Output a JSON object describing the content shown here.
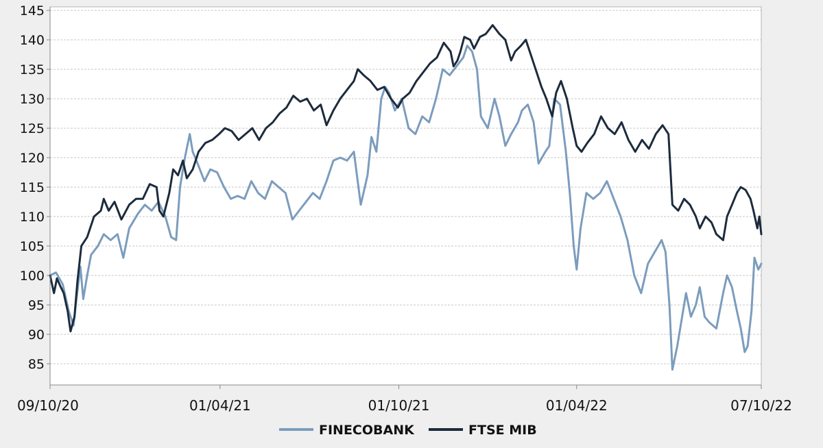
{
  "chart_data": {
    "type": "line",
    "title": "",
    "xlabel": "",
    "ylabel": "",
    "x_range": [
      "2020-10-09",
      "2022-10-07"
    ],
    "ylim": [
      81.4,
      145.6
    ],
    "y_ticks": [
      85,
      90,
      95,
      100,
      105,
      110,
      115,
      120,
      125,
      130,
      135,
      140,
      145
    ],
    "x_ticks": [
      {
        "date": "2020-10-09",
        "label": "09/10/20"
      },
      {
        "date": "2021-04-01",
        "label": "01/04/21"
      },
      {
        "date": "2021-10-01",
        "label": "01/10/21"
      },
      {
        "date": "2022-04-01",
        "label": "01/04/22"
      },
      {
        "date": "2022-10-07",
        "label": "07/10/22"
      }
    ],
    "grid": "horizontal-dashed",
    "legend_position": "bottom-center",
    "colors": {
      "background": "#efefef",
      "plot_background": "#ffffff",
      "grid": "#c8c8c8",
      "axis": "#888888"
    },
    "series": [
      {
        "name": "FINECOBANK",
        "color": "#7b9cbd",
        "points": [
          [
            "2020-10-09",
            100.0
          ],
          [
            "2020-10-15",
            100.5
          ],
          [
            "2020-10-22",
            98.5
          ],
          [
            "2020-10-28",
            94.0
          ],
          [
            "2020-11-02",
            91.5
          ],
          [
            "2020-11-05",
            96.0
          ],
          [
            "2020-11-09",
            101.5
          ],
          [
            "2020-11-12",
            96.0
          ],
          [
            "2020-11-16",
            100.0
          ],
          [
            "2020-11-20",
            103.5
          ],
          [
            "2020-11-27",
            105.0
          ],
          [
            "2020-12-03",
            107.0
          ],
          [
            "2020-12-10",
            106.0
          ],
          [
            "2020-12-17",
            107.0
          ],
          [
            "2020-12-23",
            103.0
          ],
          [
            "2020-12-29",
            108.0
          ],
          [
            "2021-01-07",
            110.5
          ],
          [
            "2021-01-14",
            112.0
          ],
          [
            "2021-01-21",
            111.0
          ],
          [
            "2021-01-28",
            112.5
          ],
          [
            "2021-02-04",
            110.0
          ],
          [
            "2021-02-10",
            106.5
          ],
          [
            "2021-02-15",
            106.0
          ],
          [
            "2021-02-19",
            115.0
          ],
          [
            "2021-02-24",
            120.0
          ],
          [
            "2021-03-01",
            124.0
          ],
          [
            "2021-03-04",
            121.0
          ],
          [
            "2021-03-09",
            119.0
          ],
          [
            "2021-03-16",
            116.0
          ],
          [
            "2021-03-22",
            118.0
          ],
          [
            "2021-03-29",
            117.5
          ],
          [
            "2021-04-05",
            115.0
          ],
          [
            "2021-04-12",
            113.0
          ],
          [
            "2021-04-19",
            113.5
          ],
          [
            "2021-04-26",
            113.0
          ],
          [
            "2021-05-03",
            116.0
          ],
          [
            "2021-05-10",
            114.0
          ],
          [
            "2021-05-17",
            113.0
          ],
          [
            "2021-05-24",
            116.0
          ],
          [
            "2021-05-31",
            115.0
          ],
          [
            "2021-06-07",
            114.0
          ],
          [
            "2021-06-14",
            109.5
          ],
          [
            "2021-06-21",
            111.0
          ],
          [
            "2021-06-28",
            112.5
          ],
          [
            "2021-07-05",
            114.0
          ],
          [
            "2021-07-12",
            113.0
          ],
          [
            "2021-07-19",
            116.0
          ],
          [
            "2021-07-26",
            119.5
          ],
          [
            "2021-08-02",
            120.0
          ],
          [
            "2021-08-09",
            119.5
          ],
          [
            "2021-08-16",
            121.0
          ],
          [
            "2021-08-23",
            112.0
          ],
          [
            "2021-08-30",
            117.0
          ],
          [
            "2021-09-03",
            123.5
          ],
          [
            "2021-09-08",
            121.0
          ],
          [
            "2021-09-13",
            130.0
          ],
          [
            "2021-09-17",
            132.0
          ],
          [
            "2021-09-21",
            131.0
          ],
          [
            "2021-09-27",
            128.0
          ],
          [
            "2021-10-04",
            130.0
          ],
          [
            "2021-10-11",
            125.0
          ],
          [
            "2021-10-18",
            124.0
          ],
          [
            "2021-10-25",
            127.0
          ],
          [
            "2021-11-01",
            126.0
          ],
          [
            "2021-11-08",
            130.0
          ],
          [
            "2021-11-15",
            135.0
          ],
          [
            "2021-11-22",
            134.0
          ],
          [
            "2021-11-29",
            135.5
          ],
          [
            "2021-12-06",
            137.0
          ],
          [
            "2021-12-10",
            139.0
          ],
          [
            "2021-12-15",
            138.0
          ],
          [
            "2021-12-20",
            135.0
          ],
          [
            "2021-12-24",
            127.0
          ],
          [
            "2021-12-31",
            125.0
          ],
          [
            "2022-01-07",
            130.0
          ],
          [
            "2022-01-12",
            127.0
          ],
          [
            "2022-01-18",
            122.0
          ],
          [
            "2022-01-24",
            124.0
          ],
          [
            "2022-01-31",
            126.0
          ],
          [
            "2022-02-04",
            128.0
          ],
          [
            "2022-02-10",
            129.0
          ],
          [
            "2022-02-16",
            126.0
          ],
          [
            "2022-02-21",
            119.0
          ],
          [
            "2022-02-28",
            121.0
          ],
          [
            "2022-03-04",
            122.0
          ],
          [
            "2022-03-09",
            130.0
          ],
          [
            "2022-03-15",
            129.0
          ],
          [
            "2022-03-21",
            121.0
          ],
          [
            "2022-03-25",
            114.0
          ],
          [
            "2022-03-29",
            105.0
          ],
          [
            "2022-04-01",
            101.0
          ],
          [
            "2022-04-05",
            108.0
          ],
          [
            "2022-04-11",
            114.0
          ],
          [
            "2022-04-18",
            113.0
          ],
          [
            "2022-04-25",
            114.0
          ],
          [
            "2022-05-02",
            116.0
          ],
          [
            "2022-05-09",
            113.0
          ],
          [
            "2022-05-16",
            110.0
          ],
          [
            "2022-05-23",
            106.0
          ],
          [
            "2022-05-30",
            100.0
          ],
          [
            "2022-06-06",
            97.0
          ],
          [
            "2022-06-13",
            102.0
          ],
          [
            "2022-06-20",
            104.0
          ],
          [
            "2022-06-27",
            106.0
          ],
          [
            "2022-07-01",
            104.0
          ],
          [
            "2022-07-05",
            95.0
          ],
          [
            "2022-07-08",
            84.0
          ],
          [
            "2022-07-13",
            88.0
          ],
          [
            "2022-07-18",
            93.0
          ],
          [
            "2022-07-22",
            97.0
          ],
          [
            "2022-07-27",
            93.0
          ],
          [
            "2022-08-01",
            95.0
          ],
          [
            "2022-08-05",
            98.0
          ],
          [
            "2022-08-10",
            93.0
          ],
          [
            "2022-08-15",
            92.0
          ],
          [
            "2022-08-22",
            91.0
          ],
          [
            "2022-08-29",
            97.0
          ],
          [
            "2022-09-02",
            100.0
          ],
          [
            "2022-09-07",
            98.0
          ],
          [
            "2022-09-12",
            94.0
          ],
          [
            "2022-09-16",
            91.0
          ],
          [
            "2022-09-20",
            87.0
          ],
          [
            "2022-09-23",
            88.0
          ],
          [
            "2022-09-27",
            94.0
          ],
          [
            "2022-09-30",
            103.0
          ],
          [
            "2022-10-04",
            101.0
          ],
          [
            "2022-10-07",
            102.0
          ]
        ]
      },
      {
        "name": "FTSE MIB",
        "color": "#1c2b3c",
        "points": [
          [
            "2020-10-09",
            100.0
          ],
          [
            "2020-10-13",
            97.0
          ],
          [
            "2020-10-16",
            99.5
          ],
          [
            "2020-10-20",
            98.0
          ],
          [
            "2020-10-23",
            97.0
          ],
          [
            "2020-10-27",
            94.0
          ],
          [
            "2020-10-30",
            90.5
          ],
          [
            "2020-11-03",
            93.0
          ],
          [
            "2020-11-06",
            99.0
          ],
          [
            "2020-11-10",
            105.0
          ],
          [
            "2020-11-16",
            106.5
          ],
          [
            "2020-11-23",
            110.0
          ],
          [
            "2020-11-30",
            111.0
          ],
          [
            "2020-12-03",
            113.0
          ],
          [
            "2020-12-08",
            111.0
          ],
          [
            "2020-12-14",
            112.5
          ],
          [
            "2020-12-21",
            109.5
          ],
          [
            "2020-12-29",
            112.0
          ],
          [
            "2021-01-05",
            113.0
          ],
          [
            "2021-01-12",
            113.0
          ],
          [
            "2021-01-19",
            115.5
          ],
          [
            "2021-01-26",
            115.0
          ],
          [
            "2021-01-29",
            111.0
          ],
          [
            "2021-02-02",
            110.0
          ],
          [
            "2021-02-08",
            114.0
          ],
          [
            "2021-02-12",
            118.0
          ],
          [
            "2021-02-17",
            117.0
          ],
          [
            "2021-02-22",
            119.5
          ],
          [
            "2021-02-26",
            116.5
          ],
          [
            "2021-03-04",
            118.0
          ],
          [
            "2021-03-10",
            121.0
          ],
          [
            "2021-03-17",
            122.5
          ],
          [
            "2021-03-24",
            123.0
          ],
          [
            "2021-03-31",
            124.0
          ],
          [
            "2021-04-06",
            125.0
          ],
          [
            "2021-04-13",
            124.5
          ],
          [
            "2021-04-20",
            123.0
          ],
          [
            "2021-04-27",
            124.0
          ],
          [
            "2021-05-04",
            125.0
          ],
          [
            "2021-05-11",
            123.0
          ],
          [
            "2021-05-18",
            125.0
          ],
          [
            "2021-05-25",
            126.0
          ],
          [
            "2021-06-01",
            127.5
          ],
          [
            "2021-06-08",
            128.5
          ],
          [
            "2021-06-15",
            130.5
          ],
          [
            "2021-06-22",
            129.5
          ],
          [
            "2021-06-29",
            130.0
          ],
          [
            "2021-07-06",
            128.0
          ],
          [
            "2021-07-13",
            129.0
          ],
          [
            "2021-07-19",
            125.5
          ],
          [
            "2021-07-26",
            128.0
          ],
          [
            "2021-08-02",
            130.0
          ],
          [
            "2021-08-09",
            131.5
          ],
          [
            "2021-08-16",
            133.0
          ],
          [
            "2021-08-20",
            135.0
          ],
          [
            "2021-08-26",
            134.0
          ],
          [
            "2021-09-02",
            133.0
          ],
          [
            "2021-09-09",
            131.5
          ],
          [
            "2021-09-16",
            132.0
          ],
          [
            "2021-09-23",
            130.0
          ],
          [
            "2021-09-30",
            128.5
          ],
          [
            "2021-10-05",
            130.0
          ],
          [
            "2021-10-12",
            131.0
          ],
          [
            "2021-10-19",
            133.0
          ],
          [
            "2021-10-26",
            134.5
          ],
          [
            "2021-11-02",
            136.0
          ],
          [
            "2021-11-09",
            137.0
          ],
          [
            "2021-11-16",
            139.5
          ],
          [
            "2021-11-23",
            138.0
          ],
          [
            "2021-11-26",
            135.5
          ],
          [
            "2021-11-30",
            136.5
          ],
          [
            "2021-12-03",
            138.0
          ],
          [
            "2021-12-07",
            140.5
          ],
          [
            "2021-12-13",
            140.0
          ],
          [
            "2021-12-17",
            138.5
          ],
          [
            "2021-12-23",
            140.5
          ],
          [
            "2021-12-29",
            141.0
          ],
          [
            "2022-01-05",
            142.5
          ],
          [
            "2022-01-12",
            141.0
          ],
          [
            "2022-01-18",
            140.0
          ],
          [
            "2022-01-24",
            136.5
          ],
          [
            "2022-01-28",
            138.0
          ],
          [
            "2022-02-03",
            139.0
          ],
          [
            "2022-02-08",
            140.0
          ],
          [
            "2022-02-14",
            137.0
          ],
          [
            "2022-02-18",
            135.0
          ],
          [
            "2022-02-24",
            132.0
          ],
          [
            "2022-03-01",
            130.0
          ],
          [
            "2022-03-07",
            127.0
          ],
          [
            "2022-03-11",
            131.0
          ],
          [
            "2022-03-16",
            133.0
          ],
          [
            "2022-03-22",
            130.0
          ],
          [
            "2022-03-28",
            125.0
          ],
          [
            "2022-04-01",
            122.0
          ],
          [
            "2022-04-06",
            121.0
          ],
          [
            "2022-04-12",
            122.5
          ],
          [
            "2022-04-19",
            124.0
          ],
          [
            "2022-04-26",
            127.0
          ],
          [
            "2022-05-03",
            125.0
          ],
          [
            "2022-05-10",
            124.0
          ],
          [
            "2022-05-17",
            126.0
          ],
          [
            "2022-05-24",
            123.0
          ],
          [
            "2022-05-31",
            121.0
          ],
          [
            "2022-06-07",
            123.0
          ],
          [
            "2022-06-14",
            121.5
          ],
          [
            "2022-06-21",
            124.0
          ],
          [
            "2022-06-28",
            125.5
          ],
          [
            "2022-07-04",
            124.0
          ],
          [
            "2022-07-08",
            112.0
          ],
          [
            "2022-07-14",
            111.0
          ],
          [
            "2022-07-20",
            113.0
          ],
          [
            "2022-07-26",
            112.0
          ],
          [
            "2022-08-01",
            110.0
          ],
          [
            "2022-08-05",
            108.0
          ],
          [
            "2022-08-11",
            110.0
          ],
          [
            "2022-08-17",
            109.0
          ],
          [
            "2022-08-22",
            107.0
          ],
          [
            "2022-08-29",
            106.0
          ],
          [
            "2022-09-02",
            110.0
          ],
          [
            "2022-09-07",
            112.0
          ],
          [
            "2022-09-12",
            114.0
          ],
          [
            "2022-09-16",
            115.0
          ],
          [
            "2022-09-21",
            114.5
          ],
          [
            "2022-09-26",
            113.0
          ],
          [
            "2022-09-29",
            111.0
          ],
          [
            "2022-10-03",
            108.0
          ],
          [
            "2022-10-05",
            110.0
          ],
          [
            "2022-10-07",
            107.0
          ]
        ]
      }
    ]
  }
}
